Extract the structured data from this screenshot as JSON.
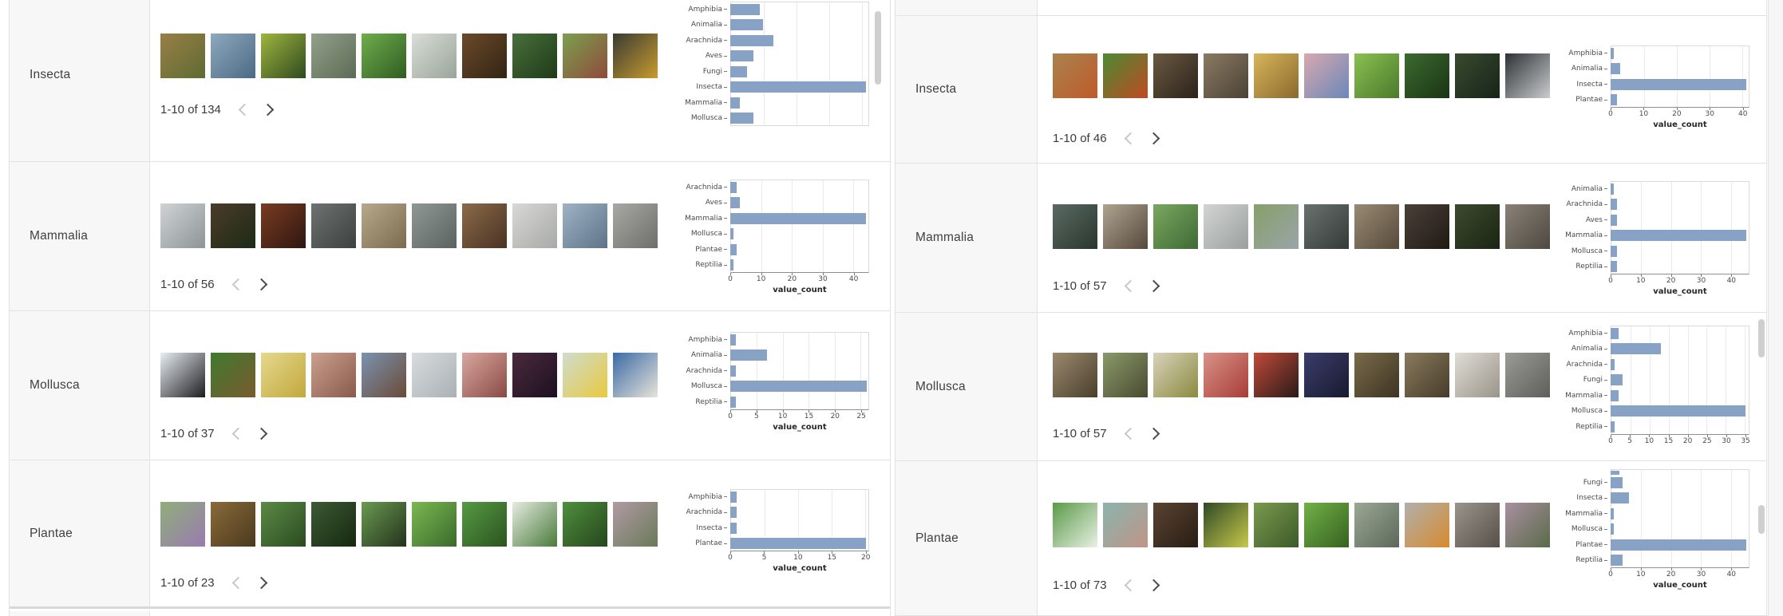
{
  "colors": {
    "bar": "#87a2c5",
    "grid": "#ebebeb",
    "border": "#e2e2e2",
    "label_bg": "#f7f7f7"
  },
  "icons": {
    "prev": "chevron-left-icon",
    "next": "chevron-right-icon",
    "scrollbar": "scrollbar-thumb"
  },
  "panels": [
    {
      "side": "left",
      "rows": [
        {
          "label": "Insecta",
          "pagination": "1-10 of 134",
          "thumbs": [
            [
              "#9a7f46",
              "#5d6b33"
            ],
            [
              "#8fa9bd",
              "#4a6a84"
            ],
            [
              "#9fb53f",
              "#2e4a1e"
            ],
            [
              "#93a08b",
              "#5d6b55"
            ],
            [
              "#6fae4e",
              "#2f5c22"
            ],
            [
              "#d9ded8",
              "#9aa49a"
            ],
            [
              "#6b4a2a",
              "#332414"
            ],
            [
              "#48703c",
              "#1f3a18"
            ],
            [
              "#7ba04f",
              "#8f4a3c"
            ],
            [
              "#3a3b33",
              "#c79b2e"
            ]
          ],
          "chart": {
            "type": "bar",
            "orientation": "horizontal",
            "categories": [
              "Amphibia",
              "Animalia",
              "Arachnida",
              "Aves",
              "Fungi",
              "Insecta",
              "Mammalia",
              "Mollusca"
            ],
            "values": [
              9,
              10,
              13,
              7,
              5,
              41,
              3,
              7
            ],
            "ticks": [
              0,
              10,
              20,
              30,
              40
            ],
            "xmax": 42,
            "xlabel": null,
            "show_axis": false
          }
        },
        {
          "label": "Mammalia",
          "pagination": "1-10 of 56",
          "thumbs": [
            [
              "#cfd3d4",
              "#8e9496"
            ],
            [
              "#4a3c28",
              "#1d2a16"
            ],
            [
              "#7a3b22",
              "#2e1710"
            ],
            [
              "#6e7270",
              "#3c403e"
            ],
            [
              "#b9a98c",
              "#7a6a4e"
            ],
            [
              "#8f9894",
              "#5a6360"
            ],
            [
              "#8a6a4a",
              "#4a3322"
            ],
            [
              "#d8d8d6",
              "#a8aaa8"
            ],
            [
              "#9fb3c4",
              "#5d7388"
            ],
            [
              "#a8a8a4",
              "#6e6e6a"
            ]
          ],
          "chart": {
            "type": "bar",
            "orientation": "horizontal",
            "categories": [
              "Arachnida",
              "Aves",
              "Mammalia",
              "Mollusca",
              "Plantae",
              "Reptilia"
            ],
            "values": [
              2,
              3,
              44,
              1,
              2,
              1
            ],
            "ticks": [
              0,
              10,
              20,
              30,
              40
            ],
            "xmax": 45,
            "xlabel": "value_count",
            "show_axis": true
          }
        },
        {
          "label": "Mollusca",
          "pagination": "1-10 of 37",
          "thumbs": [
            [
              "#e8eef2",
              "#1d1d20"
            ],
            [
              "#3f7a2e",
              "#7a5a30"
            ],
            [
              "#e5d98f",
              "#c2a83c"
            ],
            [
              "#caa08e",
              "#8a5a4a"
            ],
            [
              "#7a93b0",
              "#6b4a38"
            ],
            [
              "#d8dcdf",
              "#aab0b4"
            ],
            [
              "#d8a8a0",
              "#8a4a44"
            ],
            [
              "#4a2a3e",
              "#1c1020"
            ],
            [
              "#cfdccf",
              "#e8c93e"
            ],
            [
              "#3a6aa8",
              "#e8e4d8"
            ]
          ],
          "chart": {
            "type": "bar",
            "orientation": "horizontal",
            "categories": [
              "Amphibia",
              "Animalia",
              "Arachnida",
              "Mollusca",
              "Reptilia"
            ],
            "values": [
              1,
              7,
              1,
              26,
              1
            ],
            "ticks": [
              0,
              5,
              10,
              15,
              20,
              25
            ],
            "xmax": 26.5,
            "xlabel": "value_count",
            "show_axis": true
          }
        },
        {
          "label": "Plantae",
          "pagination": "1-10 of 23",
          "thumbs": [
            [
              "#8faf7a",
              "#9a7ab0"
            ],
            [
              "#8a6a3a",
              "#4a3a1e"
            ],
            [
              "#5a8a46",
              "#2c4a20"
            ],
            [
              "#3c5a34",
              "#16280f"
            ],
            [
              "#6a9a50",
              "#23321c"
            ],
            [
              "#7ab852",
              "#3a6a2a"
            ],
            [
              "#569a44",
              "#2a541e"
            ],
            [
              "#e4ece0",
              "#4a7a3a"
            ],
            [
              "#4f8f3e",
              "#25461c"
            ],
            [
              "#b09aa4",
              "#6a7a58"
            ]
          ],
          "chart": {
            "type": "bar",
            "orientation": "horizontal",
            "categories": [
              "Amphibia",
              "Arachnida",
              "Insecta",
              "Plantae"
            ],
            "values": [
              1,
              1,
              1,
              20
            ],
            "ticks": [
              0,
              5,
              10,
              15,
              20
            ],
            "xmax": 20.5,
            "xlabel": "value_count",
            "show_axis": true
          }
        }
      ]
    },
    {
      "side": "right",
      "rows": [
        {
          "label": "Insecta",
          "pagination": "1-10 of 46",
          "thumbs": [
            [
              "#a8834e",
              "#c05a2a"
            ],
            [
              "#4a8a34",
              "#c04a22"
            ],
            [
              "#6a5a42",
              "#2a221a"
            ],
            [
              "#8a7a62",
              "#4a4236"
            ],
            [
              "#d8b45a",
              "#8a6a2e"
            ],
            [
              "#d8a8b0",
              "#6a88b8"
            ],
            [
              "#8ac052",
              "#4a7a2a"
            ],
            [
              "#3c6a30",
              "#1a3414"
            ],
            [
              "#3a4a2e",
              "#15241a"
            ],
            [
              "#2e3236",
              "#caccce"
            ]
          ],
          "chart": {
            "type": "bar",
            "orientation": "horizontal",
            "categories": [
              "Amphibia",
              "Animalia",
              "Insecta",
              "Plantae"
            ],
            "values": [
              1,
              3,
              41,
              2
            ],
            "ticks": [
              0,
              10,
              20,
              30,
              40
            ],
            "xmax": 42,
            "xlabel": "value_count",
            "show_axis": true
          }
        },
        {
          "label": "Mammalia",
          "pagination": "1-10 of 57",
          "thumbs": [
            [
              "#5a6a62",
              "#2a362e"
            ],
            [
              "#b0a490",
              "#54493c"
            ],
            [
              "#7aa860",
              "#3e6a34"
            ],
            [
              "#d2d4d2",
              "#9aa09e"
            ],
            [
              "#86a06a",
              "#9aa4a8"
            ],
            [
              "#6a7270",
              "#343a38"
            ],
            [
              "#9a8a74",
              "#564a3a"
            ],
            [
              "#4a4038",
              "#201a14"
            ],
            [
              "#3e4a30",
              "#1a2412"
            ],
            [
              "#8a8278",
              "#4e4840"
            ]
          ],
          "chart": {
            "type": "bar",
            "orientation": "horizontal",
            "categories": [
              "Animalia",
              "Arachnida",
              "Aves",
              "Mammalia",
              "Mollusca",
              "Reptilia"
            ],
            "values": [
              1,
              2,
              2,
              45,
              2,
              2
            ],
            "ticks": [
              0,
              10,
              20,
              30,
              40
            ],
            "xmax": 46,
            "xlabel": "value_count",
            "show_axis": true
          }
        },
        {
          "label": "Mollusca",
          "pagination": "1-10 of 57",
          "thumbs": [
            [
              "#9a8a6e",
              "#4a3e2c"
            ],
            [
              "#8a9a6a",
              "#4a4a30"
            ],
            [
              "#d8d2bc",
              "#8a8a3e"
            ],
            [
              "#d8938a",
              "#a83c34"
            ],
            [
              "#c04a3a",
              "#2a1a18"
            ],
            [
              "#3a3e6a",
              "#181a30"
            ],
            [
              "#7a6a4a",
              "#3c3422"
            ],
            [
              "#8a7a5e",
              "#463c2a"
            ],
            [
              "#e0ddd4",
              "#9a948a"
            ],
            [
              "#9a9a96",
              "#5e5e5a"
            ]
          ],
          "chart": {
            "type": "bar",
            "orientation": "horizontal",
            "categories": [
              "Amphibia",
              "Animalia",
              "Arachnida",
              "Fungi",
              "Mammalia",
              "Mollusca",
              "Reptilia"
            ],
            "values": [
              2,
              13,
              1,
              3,
              2,
              35,
              1
            ],
            "ticks": [
              0,
              5,
              10,
              15,
              20,
              25,
              30,
              35
            ],
            "xmax": 36,
            "xlabel": null,
            "show_axis": true
          }
        },
        {
          "label": "Plantae",
          "pagination": "1-10 of 73",
          "thumbs": [
            [
              "#5a9a48",
              "#e8f0e4"
            ],
            [
              "#8ab4ac",
              "#c09488"
            ],
            [
              "#5a4332",
              "#281d14"
            ],
            [
              "#2e4a26",
              "#c8c84a"
            ],
            [
              "#7a9a4e",
              "#3c5a28"
            ],
            [
              "#72b048",
              "#35621f"
            ],
            [
              "#9aa894",
              "#5c685a"
            ],
            [
              "#b0b0ac",
              "#d88a2e"
            ],
            [
              "#9a948c",
              "#565049"
            ],
            [
              "#a890a0",
              "#5a6a4a"
            ]
          ],
          "chart": {
            "type": "bar",
            "orientation": "horizontal",
            "categories": [
              "Fungi",
              "Insecta",
              "Mammalia",
              "Mollusca",
              "Plantae",
              "Reptilia"
            ],
            "values": [
              4,
              6,
              1,
              1,
              45,
              4
            ],
            "ticks": [
              0,
              10,
              20,
              30,
              40
            ],
            "xmax": 46,
            "xlabel": "value_count",
            "show_axis": true,
            "clipped_top_value": 3
          }
        }
      ]
    }
  ]
}
